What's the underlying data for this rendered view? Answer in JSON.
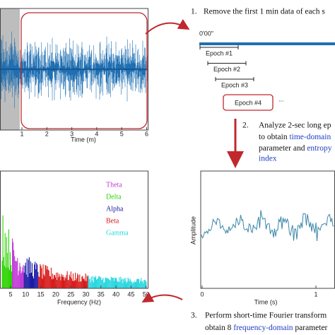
{
  "eeg_plot": {
    "xticks": [
      "1",
      "2",
      "3",
      "4",
      "5",
      "6"
    ],
    "xlabel": "Time (m)"
  },
  "step1": {
    "number": "1.",
    "text": "Remove the first 1 min data of each s"
  },
  "timeline": {
    "start": "0'00\"",
    "epochs": [
      "Epoch #1",
      "Epoch #2",
      "Epoch #3",
      "Epoch #4"
    ],
    "more": "..."
  },
  "step2": {
    "number": "2.",
    "line1": "Analyze 2-sec long ep",
    "line2a": "to obtain ",
    "line2b": "time-domain",
    "line3a": "parameter and ",
    "line3b": "entropy",
    "line4": "index"
  },
  "spectrum_plot": {
    "xticks": [
      "5",
      "10",
      "15",
      "20",
      "25",
      "30",
      "35",
      "40",
      "45",
      "50"
    ],
    "xlabel": "Frequency (Hz)",
    "legend": [
      "Theta",
      "Delta",
      "Alpha",
      "Beta",
      "Gamma"
    ]
  },
  "epoch_plot": {
    "xticks": [
      "0",
      "1"
    ],
    "xlabel": "Time (s)",
    "ylabel": "Amplitude"
  },
  "step3": {
    "number": "3.",
    "line1": "Perform short-time Fourier transform",
    "line2a": "obtain 8 ",
    "line2b": "frequency-domain",
    "line2c": " parameter"
  }
}
